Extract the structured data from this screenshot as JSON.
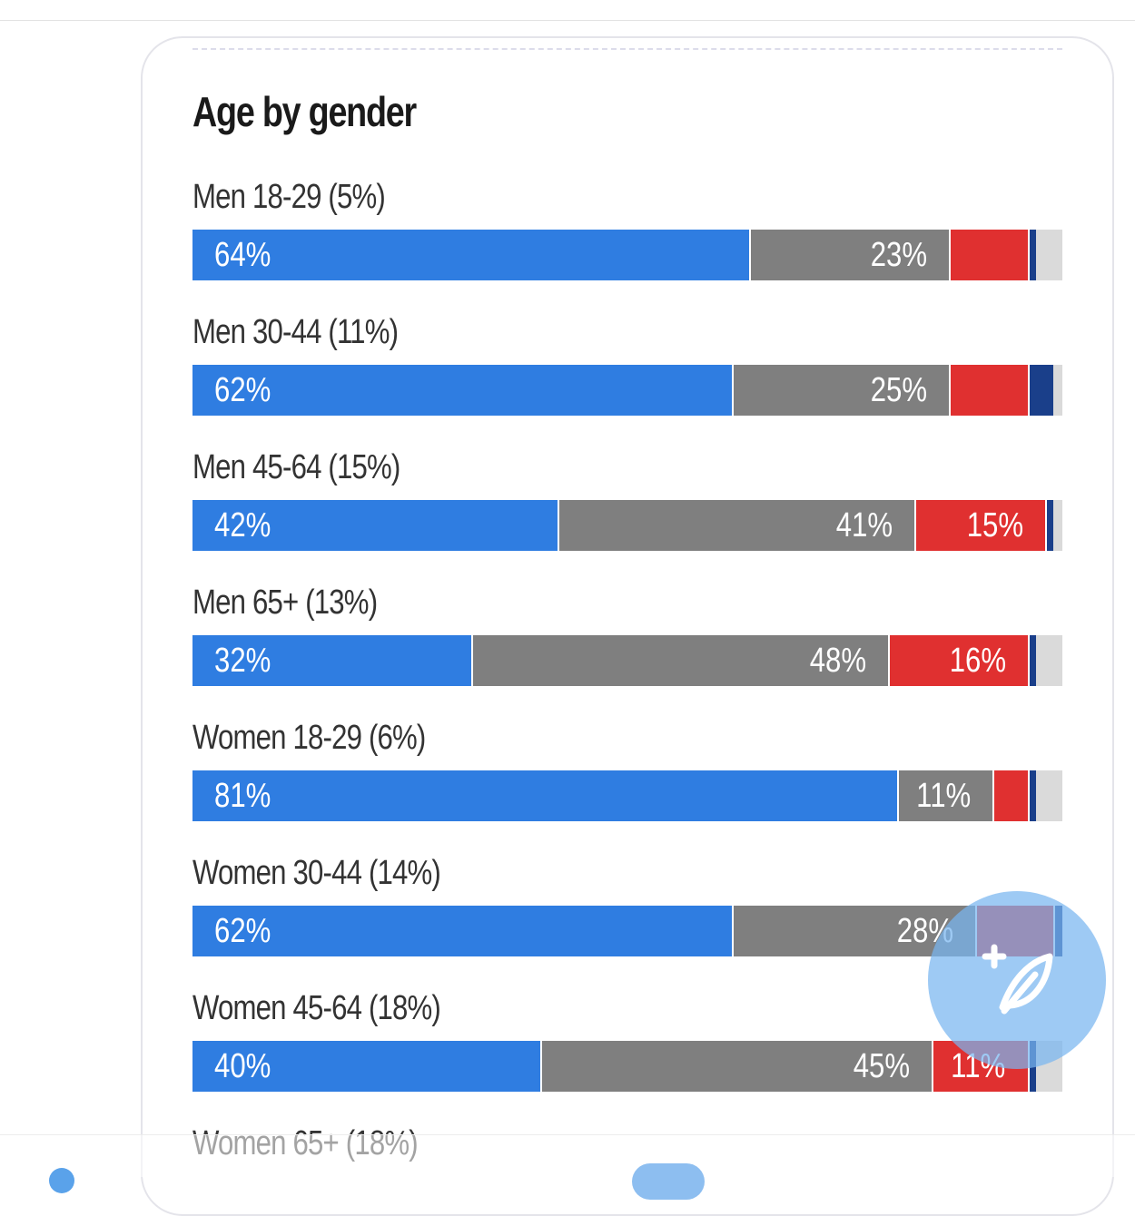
{
  "chart_data": {
    "type": "bar",
    "orientation": "horizontal",
    "stacked": true,
    "title": "Age by gender",
    "series_colors": {
      "blue": "#2f7de1",
      "gray": "#7f7f7f",
      "red": "#e03030",
      "navy": "#1a3f8a",
      "remainder": "#dadada"
    },
    "rows": [
      {
        "label": "Men 18-29 (5%)",
        "segments": [
          {
            "color": "blue",
            "value": 64,
            "text": "64%"
          },
          {
            "color": "gray",
            "value": 23,
            "text": "23%"
          },
          {
            "color": "red",
            "value": 9,
            "text": ""
          },
          {
            "color": "navy",
            "value": 1,
            "text": ""
          }
        ]
      },
      {
        "label": "Men 30-44 (11%)",
        "segments": [
          {
            "color": "blue",
            "value": 62,
            "text": "62%"
          },
          {
            "color": "gray",
            "value": 25,
            "text": "25%"
          },
          {
            "color": "red",
            "value": 9,
            "text": ""
          },
          {
            "color": "navy",
            "value": 3,
            "text": ""
          }
        ]
      },
      {
        "label": "Men 45-64 (15%)",
        "segments": [
          {
            "color": "blue",
            "value": 42,
            "text": "42%"
          },
          {
            "color": "gray",
            "value": 41,
            "text": "41%"
          },
          {
            "color": "red",
            "value": 15,
            "text": "15%"
          },
          {
            "color": "navy",
            "value": 1,
            "text": ""
          }
        ]
      },
      {
        "label": "Men 65+ (13%)",
        "segments": [
          {
            "color": "blue",
            "value": 32,
            "text": "32%"
          },
          {
            "color": "gray",
            "value": 48,
            "text": "48%"
          },
          {
            "color": "red",
            "value": 16,
            "text": "16%"
          },
          {
            "color": "navy",
            "value": 1,
            "text": ""
          }
        ]
      },
      {
        "label": "Women 18-29 (6%)",
        "segments": [
          {
            "color": "blue",
            "value": 81,
            "text": "81%"
          },
          {
            "color": "gray",
            "value": 11,
            "text": "11%"
          },
          {
            "color": "red",
            "value": 4,
            "text": ""
          },
          {
            "color": "navy",
            "value": 1,
            "text": ""
          }
        ]
      },
      {
        "label": "Women 30-44 (14%)",
        "segments": [
          {
            "color": "blue",
            "value": 62,
            "text": "62%"
          },
          {
            "color": "gray",
            "value": 28,
            "text": "28%"
          },
          {
            "color": "red",
            "value": 9,
            "text": ""
          },
          {
            "color": "navy",
            "value": 1,
            "text": ""
          }
        ]
      },
      {
        "label": "Women 45-64 (18%)",
        "segments": [
          {
            "color": "blue",
            "value": 40,
            "text": "40%"
          },
          {
            "color": "gray",
            "value": 45,
            "text": "45%"
          },
          {
            "color": "red",
            "value": 11,
            "text": "11%"
          },
          {
            "color": "navy",
            "value": 1,
            "text": ""
          }
        ]
      },
      {
        "label": "Women 65+ (18%)",
        "segments": []
      }
    ]
  },
  "fab": {
    "icon": "leaf-plus-icon",
    "color": "#78b6f0"
  }
}
